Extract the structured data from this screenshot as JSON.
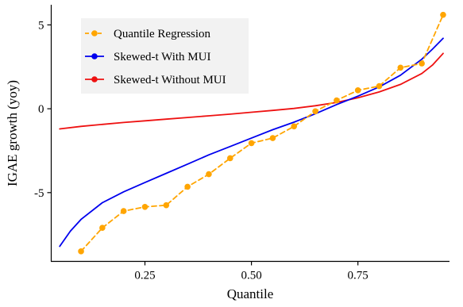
{
  "chart_data": {
    "type": "line",
    "xlabel": "Quantile",
    "ylabel": "IGAE growth (yoy)",
    "xlim": [
      0.03,
      0.965
    ],
    "ylim": [
      -9.1,
      6.2
    ],
    "x_ticks": [
      0.25,
      0.5,
      0.75
    ],
    "x_tick_labels": [
      "0.25",
      "0.50",
      "0.75"
    ],
    "y_ticks": [
      -5,
      0,
      5
    ],
    "y_tick_labels": [
      "-5",
      "0",
      "5"
    ],
    "grid": false,
    "legend_position": "top-left",
    "series": [
      {
        "name": "Quantile Regression",
        "color": "#FFA500",
        "style": "dashed",
        "markers": true,
        "x": [
          0.1,
          0.15,
          0.2,
          0.25,
          0.3,
          0.35,
          0.4,
          0.45,
          0.5,
          0.55,
          0.6,
          0.65,
          0.7,
          0.75,
          0.8,
          0.85,
          0.9,
          0.95
        ],
        "y": [
          -8.5,
          -7.1,
          -6.1,
          -5.85,
          -5.75,
          -4.65,
          -3.9,
          -2.95,
          -2.05,
          -1.75,
          -1.05,
          -0.15,
          0.5,
          1.1,
          1.35,
          2.45,
          2.7,
          5.6
        ]
      },
      {
        "name": "Skewed-t With MUI",
        "color": "#0000EE",
        "style": "solid",
        "markers": false,
        "x": [
          0.05,
          0.075,
          0.1,
          0.15,
          0.2,
          0.25,
          0.3,
          0.35,
          0.4,
          0.45,
          0.5,
          0.55,
          0.6,
          0.65,
          0.7,
          0.75,
          0.8,
          0.85,
          0.9,
          0.925,
          0.95
        ],
        "y": [
          -8.2,
          -7.3,
          -6.6,
          -5.6,
          -4.95,
          -4.4,
          -3.85,
          -3.3,
          -2.75,
          -2.25,
          -1.75,
          -1.25,
          -0.8,
          -0.3,
          0.25,
          0.75,
          1.3,
          2.0,
          2.95,
          3.55,
          4.2
        ]
      },
      {
        "name": "Skewed-t Without MUI",
        "color": "#EE1111",
        "style": "solid",
        "markers": false,
        "x": [
          0.05,
          0.1,
          0.15,
          0.2,
          0.25,
          0.3,
          0.35,
          0.4,
          0.45,
          0.5,
          0.55,
          0.6,
          0.65,
          0.7,
          0.75,
          0.8,
          0.85,
          0.9,
          0.925,
          0.95
        ],
        "y": [
          -1.2,
          -1.05,
          -0.93,
          -0.82,
          -0.72,
          -0.62,
          -0.52,
          -0.42,
          -0.32,
          -0.21,
          -0.1,
          0.02,
          0.18,
          0.38,
          0.65,
          1.0,
          1.45,
          2.1,
          2.6,
          3.3
        ]
      }
    ]
  }
}
